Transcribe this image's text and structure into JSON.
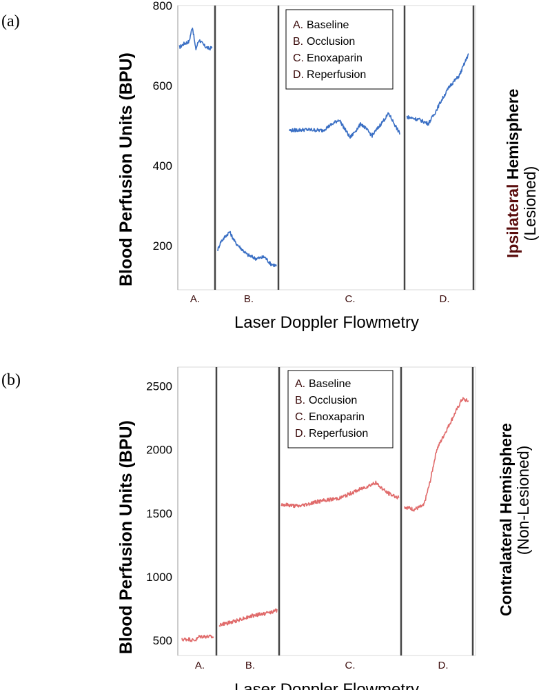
{
  "figure": {
    "panels": [
      {
        "label": "(a)",
        "side_bold": "Ipsilateral",
        "side_rest": " Hemisphere",
        "side_line2": "(Lesioned)"
      },
      {
        "label": "(b)",
        "side_bold": "Contralateral",
        "side_rest": " Hemisphere",
        "side_line2": "(Non-Lesioned)"
      }
    ]
  },
  "colors": {
    "series_a": "#3a6fc4",
    "series_b": "#e06a6a",
    "ipsilateral": "#5a0d0d",
    "contralateral": "#000000"
  },
  "chart_data": [
    {
      "type": "line",
      "ylabel": "Blood Perfusion Units (BPU)",
      "xlabel": "Laser Doppler Flowmetry",
      "ylim": [
        90,
        800
      ],
      "yticks": [
        200,
        400,
        600,
        800
      ],
      "segments": [
        "A.",
        "B.",
        "C.",
        "D."
      ],
      "legend": [
        {
          "letter": "A.",
          "text": "Baseline"
        },
        {
          "letter": "B.",
          "text": "Occlusion"
        },
        {
          "letter": "C.",
          "text": "Enoxaparin"
        },
        {
          "letter": "D.",
          "text": "Reperfusion"
        }
      ],
      "legend_position": "top-center",
      "series": [
        {
          "segment": "A.",
          "x": [
            0,
            0.15,
            0.3,
            0.4,
            0.5,
            0.6,
            0.75,
            0.9,
            1.0
          ],
          "y": [
            695,
            705,
            710,
            748,
            690,
            715,
            700,
            692,
            695
          ]
        },
        {
          "segment": "B.",
          "x": [
            0,
            0.05,
            0.2,
            0.3,
            0.5,
            0.65,
            0.8,
            0.9,
            1.0
          ],
          "y": [
            190,
            210,
            235,
            208,
            178,
            168,
            172,
            155,
            150
          ]
        },
        {
          "segment": "C.",
          "x": [
            0,
            0.15,
            0.3,
            0.45,
            0.55,
            0.65,
            0.75,
            0.9,
            1.0
          ],
          "y": [
            488,
            490,
            488,
            515,
            470,
            505,
            475,
            530,
            480
          ]
        },
        {
          "segment": "D.",
          "x": [
            0,
            0.2,
            0.35,
            0.45,
            0.55,
            0.7,
            0.85,
            1.0
          ],
          "y": [
            522,
            515,
            505,
            530,
            560,
            600,
            625,
            680
          ]
        }
      ]
    },
    {
      "type": "line",
      "ylabel": "Blood Perfusion Units (BPU)",
      "xlabel": "Laser Doppler Flowmetry",
      "ylim": [
        380,
        2650
      ],
      "yticks": [
        500,
        1000,
        1500,
        2000,
        2500
      ],
      "segments": [
        "A.",
        "B.",
        "C.",
        "D."
      ],
      "legend": [
        {
          "letter": "A.",
          "text": "Baseline"
        },
        {
          "letter": "B.",
          "text": "Occlusion"
        },
        {
          "letter": "C.",
          "text": "Enoxaparin"
        },
        {
          "letter": "D.",
          "text": "Reperfusion"
        }
      ],
      "legend_position": "top-center",
      "series": [
        {
          "segment": "A.",
          "x": [
            0,
            0.2,
            0.35,
            0.45,
            0.55,
            0.75,
            1.0
          ],
          "y": [
            505,
            510,
            500,
            505,
            530,
            530,
            525
          ]
        },
        {
          "segment": "B.",
          "x": [
            0,
            0.2,
            0.4,
            0.6,
            0.8,
            1.0
          ],
          "y": [
            620,
            640,
            670,
            695,
            710,
            735
          ]
        },
        {
          "segment": "C.",
          "x": [
            0,
            0.15,
            0.3,
            0.5,
            0.65,
            0.8,
            0.9,
            1.0
          ],
          "y": [
            1570,
            1555,
            1590,
            1620,
            1680,
            1740,
            1660,
            1620
          ]
        },
        {
          "segment": "D.",
          "x": [
            0,
            0.15,
            0.3,
            0.4,
            0.5,
            0.65,
            0.8,
            0.9,
            1.0
          ],
          "y": [
            1550,
            1530,
            1560,
            1750,
            2000,
            2150,
            2300,
            2400,
            2380
          ]
        }
      ]
    }
  ]
}
